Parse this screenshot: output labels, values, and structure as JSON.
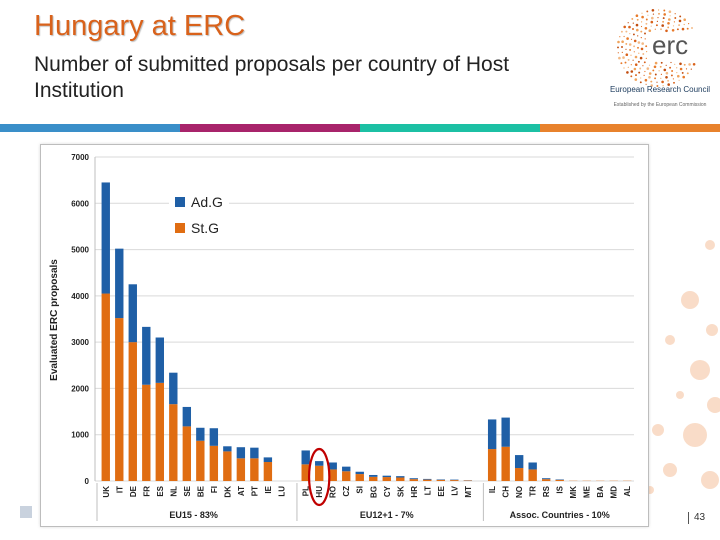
{
  "slide": {
    "title": "Hungary at ERC",
    "subtitle": "Number of submitted proposals per country of Host Institution",
    "page_number": "43"
  },
  "logo": {
    "wordmark": "erc",
    "name": "European Research Council",
    "tagline": "Established by the European Commission"
  },
  "colors": {
    "band": [
      "#3a8fc9",
      "#a8246b",
      "#1cc0a4",
      "#e8822c"
    ],
    "adg": "#1f5fa6",
    "stg": "#e06d12",
    "title": "#d9621b",
    "highlight": "#c00000"
  },
  "chart_data": {
    "type": "bar",
    "stacked": true,
    "ylabel": "Evaluated ERC proposals",
    "ylim": [
      0,
      7000
    ],
    "yticks": [
      0,
      1000,
      2000,
      3000,
      4000,
      5000,
      6000,
      7000
    ],
    "grid": true,
    "legend": [
      "Ad.G",
      "St.G"
    ],
    "legend_position": "top-left",
    "categories": [
      "UK",
      "IT",
      "DE",
      "FR",
      "ES",
      "NL",
      "SE",
      "BE",
      "FI",
      "DK",
      "AT",
      "PT",
      "IE",
      "LU",
      "PL",
      "HU",
      "RO",
      "CZ",
      "SI",
      "BG",
      "CY",
      "SK",
      "HR",
      "LT",
      "EE",
      "LV",
      "MT",
      "IL",
      "CH",
      "NO",
      "TR",
      "RS",
      "IS",
      "MK",
      "ME",
      "BA",
      "MD",
      "AL"
    ],
    "gaps_after": [
      "LU",
      "MT"
    ],
    "series": [
      {
        "name": "St.G",
        "values": [
          4050,
          3520,
          3000,
          2080,
          2120,
          1660,
          1180,
          870,
          760,
          640,
          490,
          490,
          410,
          0,
          360,
          330,
          250,
          210,
          150,
          90,
          85,
          75,
          40,
          30,
          25,
          20,
          10,
          690,
          740,
          280,
          250,
          40,
          25,
          5,
          5,
          5,
          5,
          5
        ]
      },
      {
        "name": "Ad.G",
        "values": [
          2400,
          1500,
          1250,
          1250,
          980,
          680,
          420,
          280,
          380,
          110,
          240,
          230,
          100,
          0,
          300,
          100,
          150,
          100,
          50,
          40,
          30,
          30,
          20,
          15,
          10,
          10,
          5,
          640,
          630,
          280,
          150,
          20,
          10,
          0,
          0,
          0,
          0,
          0
        ]
      }
    ],
    "groups": [
      {
        "label": "EU15 - 83%",
        "from": "UK",
        "to": "LU"
      },
      {
        "label": "EU12+1 - 7%",
        "from": "PL",
        "to": "MT"
      },
      {
        "label": "Assoc. Countries - 10%",
        "from": "IL",
        "to": "AL"
      }
    ],
    "highlight": "HU"
  }
}
